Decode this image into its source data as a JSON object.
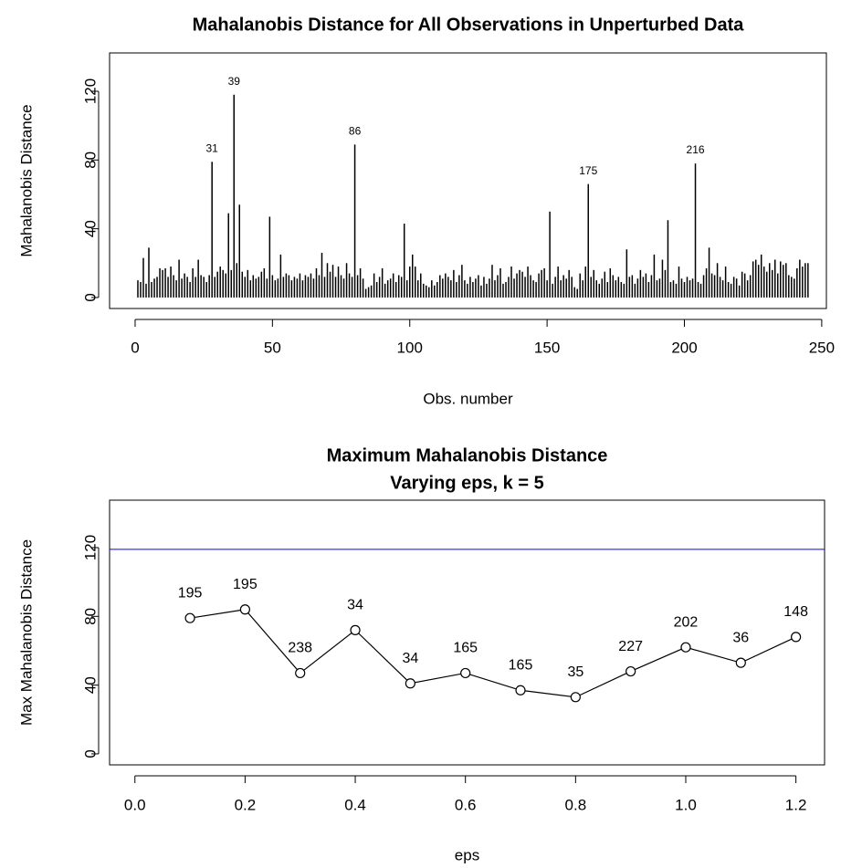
{
  "chart_data": [
    {
      "type": "spike",
      "title": "Mahalanobis Distance for All Observations in Unperturbed Data",
      "x_label": "Obs. number",
      "y_label": "Mahalanobis Distance",
      "color": "#000000",
      "x": [
        1,
        2,
        3,
        4,
        5,
        6,
        7,
        8,
        9,
        10,
        11,
        12,
        13,
        14,
        15,
        16,
        17,
        18,
        19,
        20,
        21,
        22,
        23,
        24,
        25,
        26,
        27,
        28,
        29,
        30,
        31,
        32,
        33,
        34,
        35,
        36,
        37,
        38,
        39,
        40,
        41,
        42,
        43,
        44,
        45,
        46,
        47,
        48,
        49,
        50,
        51,
        52,
        53,
        54,
        55,
        56,
        57,
        58,
        59,
        60,
        61,
        62,
        63,
        64,
        65,
        66,
        67,
        68,
        69,
        70,
        71,
        72,
        73,
        74,
        75,
        76,
        77,
        78,
        79,
        80,
        81,
        82,
        83,
        84,
        85,
        86,
        87,
        88,
        89,
        90,
        91,
        92,
        93,
        94,
        95,
        96,
        97,
        98,
        99,
        100,
        101,
        102,
        103,
        104,
        105,
        106,
        107,
        108,
        109,
        110,
        111,
        112,
        113,
        114,
        115,
        116,
        117,
        118,
        119,
        120,
        121,
        122,
        123,
        124,
        125,
        126,
        127,
        128,
        129,
        130,
        131,
        132,
        133,
        134,
        135,
        136,
        137,
        138,
        139,
        140,
        141,
        142,
        143,
        144,
        145,
        146,
        147,
        148,
        149,
        150,
        151,
        152,
        153,
        154,
        155,
        156,
        157,
        158,
        159,
        160,
        161,
        162,
        163,
        164,
        165,
        166,
        167,
        168,
        169,
        170,
        171,
        172,
        173,
        174,
        175,
        176,
        177,
        178,
        179,
        180,
        181,
        182,
        183,
        184,
        185,
        186,
        187,
        188,
        189,
        190,
        191,
        192,
        193,
        194,
        195,
        196,
        197,
        198,
        199,
        200,
        201,
        202,
        203,
        204,
        205,
        206,
        207,
        208,
        209,
        210,
        211,
        212,
        213,
        214,
        215,
        216,
        217,
        218,
        219,
        220,
        221,
        222,
        223,
        224,
        225,
        226,
        227,
        228,
        229,
        230,
        231,
        232,
        233,
        234,
        235,
        236,
        237,
        238,
        239,
        240,
        241,
        242,
        243,
        244,
        245
      ],
      "values": [
        10,
        9,
        23,
        8,
        29,
        9,
        11,
        12,
        17,
        16,
        17,
        12,
        18,
        13,
        10,
        22,
        11,
        14,
        12,
        9,
        17,
        12,
        22,
        13,
        12,
        9,
        13,
        79,
        12,
        15,
        18,
        16,
        14,
        49,
        16,
        118,
        20,
        54,
        15,
        12,
        16,
        10,
        13,
        11,
        12,
        15,
        17,
        11,
        47,
        13,
        10,
        11,
        25,
        12,
        14,
        13,
        10,
        12,
        11,
        14,
        10,
        13,
        12,
        14,
        11,
        17,
        13,
        26,
        12,
        20,
        15,
        19,
        12,
        18,
        13,
        11,
        20,
        14,
        12,
        89,
        13,
        17,
        11,
        5,
        6,
        7,
        14,
        9,
        12,
        17,
        8,
        10,
        11,
        14,
        9,
        13,
        12,
        43,
        10,
        18,
        25,
        18,
        10,
        14,
        8,
        7,
        6,
        10,
        7,
        9,
        13,
        11,
        14,
        12,
        10,
        16,
        9,
        13,
        19,
        10,
        8,
        12,
        9,
        11,
        13,
        7,
        12,
        8,
        11,
        19,
        10,
        13,
        17,
        8,
        9,
        12,
        18,
        11,
        14,
        16,
        15,
        12,
        18,
        13,
        10,
        9,
        14,
        16,
        17,
        10,
        50,
        8,
        12,
        18,
        10,
        13,
        11,
        16,
        12,
        6,
        5,
        14,
        10,
        18,
        66,
        12,
        16,
        10,
        8,
        11,
        15,
        9,
        17,
        13,
        10,
        12,
        9,
        8,
        28,
        12,
        13,
        8,
        11,
        16,
        12,
        14,
        9,
        13,
        25,
        10,
        11,
        22,
        16,
        45,
        9,
        10,
        8,
        18,
        11,
        9,
        12,
        10,
        11,
        78,
        9,
        8,
        13,
        17,
        29,
        14,
        13,
        20,
        12,
        10,
        18,
        9,
        8,
        12,
        11,
        7,
        15,
        14,
        10,
        13,
        21,
        22,
        19,
        25,
        18,
        15,
        20,
        16,
        22,
        14,
        21,
        19,
        20,
        13,
        12,
        11,
        17,
        22,
        18,
        20,
        20
      ],
      "point_labels": [
        {
          "x": 28,
          "label": "31"
        },
        {
          "x": 36,
          "label": "39"
        },
        {
          "x": 80,
          "label": "86"
        },
        {
          "x": 165,
          "label": "175"
        },
        {
          "x": 204,
          "label": "216"
        }
      ],
      "xlim": [
        -9.3,
        251.7
      ],
      "ylim": [
        -6.4,
        142.3
      ],
      "xticks": [
        0,
        50,
        100,
        150,
        200,
        250
      ],
      "yticks": [
        0,
        40,
        80,
        120
      ]
    },
    {
      "type": "line",
      "title": "Maximum Mahalanobis Distance",
      "subtitle": "Varying eps, k = 5",
      "x_label": "eps",
      "y_label": "Max Mahalanobis Distance",
      "color": "#000000",
      "x": [
        0.1,
        0.2,
        0.3,
        0.4,
        0.5,
        0.6,
        0.7,
        0.8,
        0.9,
        1.0,
        1.1,
        1.2
      ],
      "values": [
        79,
        84,
        47,
        72,
        41,
        47,
        37,
        33,
        48,
        62,
        53,
        68
      ],
      "point_labels": [
        "195",
        "195",
        "238",
        "34",
        "34",
        "165",
        "165",
        "35",
        "227",
        "202",
        "36",
        "148"
      ],
      "hline": {
        "y": 119,
        "color": "#0000ff"
      },
      "xlim": [
        -0.046,
        1.252
      ],
      "ylim": [
        -6.4,
        147.6
      ],
      "xticks": [
        {
          "value": 0,
          "label": "0.0"
        },
        0.2,
        0.4,
        0.6,
        0.8,
        {
          "value": 1,
          "label": "1.0"
        },
        1.2
      ],
      "yticks": [
        0,
        40,
        80,
        120
      ]
    }
  ]
}
